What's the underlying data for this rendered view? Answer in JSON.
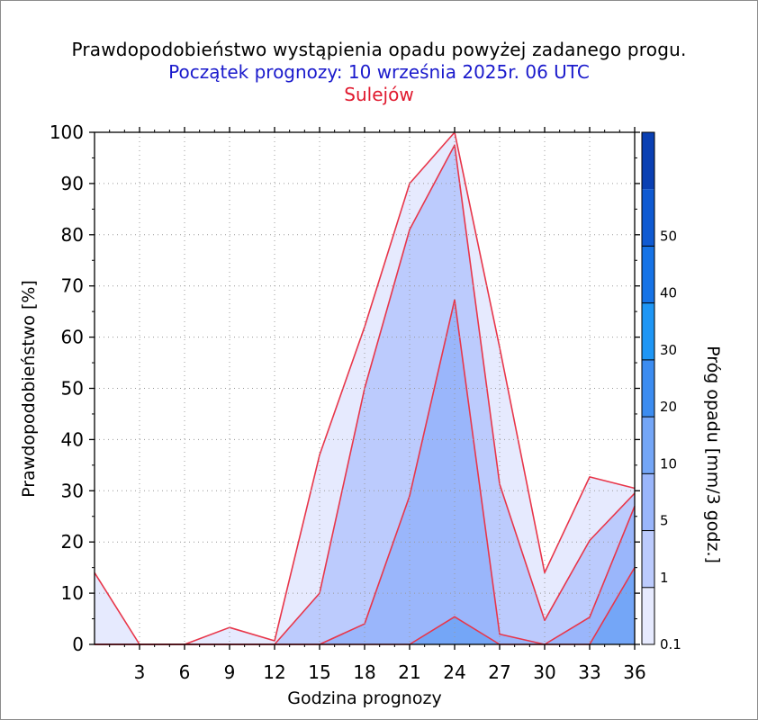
{
  "titles": {
    "main": "Prawdopodobieństwo wystąpienia opadu powyżej zadanego progu.",
    "start": "Początek prognozy: 10 września 2025r. 06 UTC",
    "location": "Sulejów"
  },
  "colors": {
    "title_main": "#000000",
    "title_start": "#1a1acc",
    "title_location": "#e0192e",
    "outline": "#e8364a",
    "grid": "#9a9a9a"
  },
  "chart_data": {
    "type": "area",
    "title": "Prawdopodobieństwo wystąpienia opadu powyżej zadanego progu.",
    "xlabel": "Godzina prognozy",
    "ylabel": "Prawdopodobieństwo [%]",
    "x": [
      0,
      3,
      6,
      9,
      12,
      15,
      18,
      21,
      24,
      27,
      30,
      33,
      36
    ],
    "xticks": [
      3,
      6,
      9,
      12,
      15,
      18,
      21,
      24,
      27,
      30,
      33,
      36
    ],
    "xlim": [
      0,
      36
    ],
    "yticks": [
      0,
      10,
      20,
      30,
      40,
      50,
      60,
      70,
      80,
      90,
      100
    ],
    "ylim": [
      0,
      100
    ],
    "grid": true,
    "series": [
      {
        "name": "0.1",
        "color": "#e6eafe",
        "values": [
          14,
          0,
          0,
          3.3,
          0.7,
          37,
          62,
          90,
          100,
          58,
          14,
          32.7,
          30.5
        ]
      },
      {
        "name": "1",
        "color": "#bccbfd",
        "values": [
          0,
          0,
          0,
          0,
          0,
          10,
          50,
          81,
          97.5,
          31.3,
          4.7,
          20.3,
          29.5
        ]
      },
      {
        "name": "5",
        "color": "#9ab6fb",
        "values": [
          0,
          0,
          0,
          0,
          0,
          0,
          4,
          29,
          67.3,
          2,
          0,
          5.3,
          27
        ]
      },
      {
        "name": "10",
        "color": "#74a6f7",
        "values": [
          0,
          0,
          0,
          0,
          0,
          0,
          0,
          0,
          5.4,
          0,
          0,
          0,
          15
        ]
      }
    ],
    "colorbar": {
      "label": "Próg opadu [mm/3 godz.]",
      "levels": [
        "0.1",
        "1",
        "5",
        "10",
        "20",
        "30",
        "40",
        "50"
      ],
      "colors": [
        "#e6eafe",
        "#bccbfd",
        "#9ab6fb",
        "#74a6f7",
        "#3c8cf0",
        "#1e96f5",
        "#1673e6",
        "#0f5ad2",
        "#0a40b3"
      ]
    }
  }
}
